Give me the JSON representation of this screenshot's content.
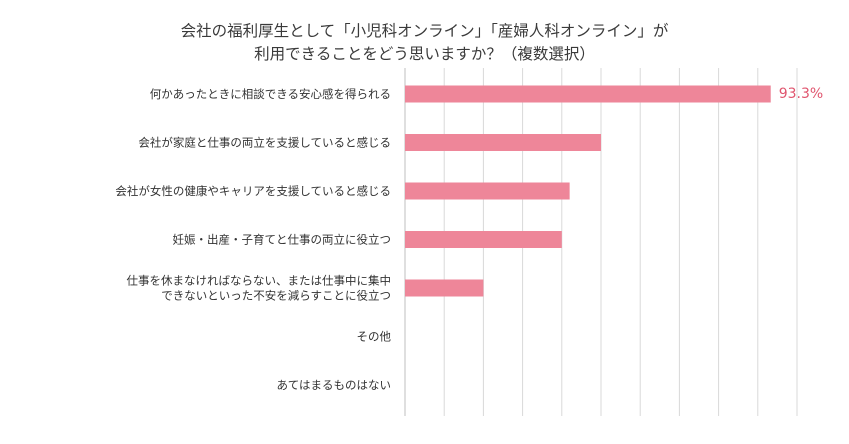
{
  "chart_data": {
    "type": "bar",
    "orientation": "horizontal",
    "title_lines": [
      "会社の福利厚生として「小児科オンライン」「産婦人科オンライン」が",
      "利用できることをどう思いますか？（複数選択）"
    ],
    "categories": [
      [
        "何かあったときに相談できる安心感を得られる"
      ],
      [
        "会社が家庭と仕事の両立を支援していると感じる"
      ],
      [
        "会社が女性の健康やキャリアを支援していると感じる"
      ],
      [
        "妊娠・出産・子育てと仕事の両立に役立つ"
      ],
      [
        "仕事を休まなければならない、または仕事中に集中",
        "できないといった不安を減らすことに役立つ"
      ],
      [
        "その他"
      ],
      [
        "あてはまるものはない"
      ]
    ],
    "values": [
      93.3,
      50,
      42,
      40,
      20,
      0,
      0
    ],
    "data_labels": [
      "93.3%",
      "",
      "",
      "",
      "",
      "",
      ""
    ],
    "xlim": [
      0,
      100
    ],
    "grid": true,
    "colors": {
      "bar": "#ee8699",
      "label": "#e0566f",
      "grid": "#d9d9d9",
      "axis": "#bfbfbf"
    }
  }
}
